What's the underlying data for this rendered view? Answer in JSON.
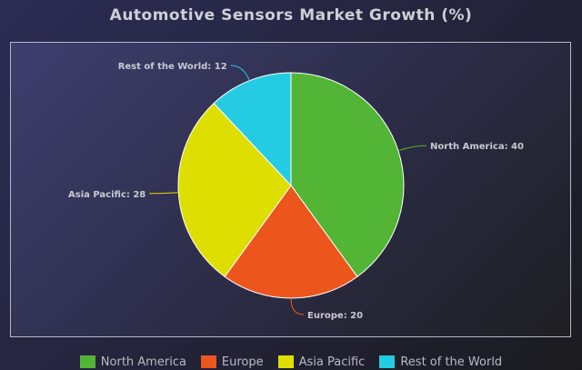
{
  "title": "Automotive Sensors Market Growth (%)",
  "chart_data": {
    "type": "pie",
    "title": "Automotive Sensors Market Growth (%)",
    "slices": [
      {
        "label": "North America",
        "value": 40,
        "color": "#52b535"
      },
      {
        "label": "Europe",
        "value": 20,
        "color": "#ec561d"
      },
      {
        "label": "Asia Pacific",
        "value": 28,
        "color": "#dede00"
      },
      {
        "label": "Rest of the World",
        "value": 12,
        "color": "#25cbe3"
      }
    ],
    "data_labels": [
      "North America: 40",
      "Europe: 20",
      "Asia Pacific: 28",
      "Rest of the World: 12"
    ],
    "legend_position": "bottom"
  },
  "legend": [
    {
      "label": "North America",
      "color": "#52b535"
    },
    {
      "label": "Europe",
      "color": "#ec561d"
    },
    {
      "label": "Asia Pacific",
      "color": "#dede00"
    },
    {
      "label": "Rest of the World",
      "color": "#25cbe3"
    }
  ]
}
